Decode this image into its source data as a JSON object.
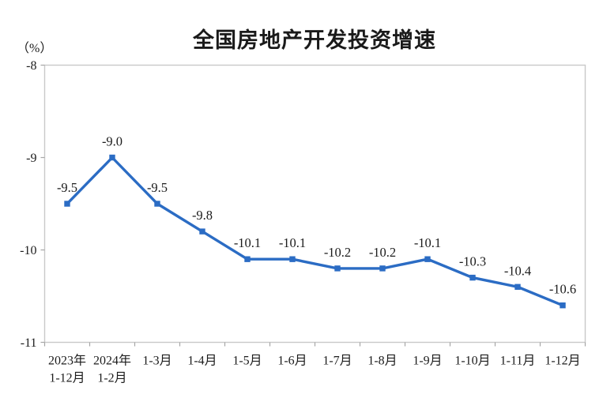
{
  "chart_data": {
    "type": "line",
    "title": "全国房地产开发投资增速",
    "ylabel_unit": "（%）",
    "xlabel": "",
    "ylabel": "",
    "categories": [
      "2023年\n1-12月",
      "2024年\n1-2月",
      "1-3月",
      "1-4月",
      "1-5月",
      "1-6月",
      "1-7月",
      "1-8月",
      "1-9月",
      "1-10月",
      "1-11月",
      "1-12月"
    ],
    "values": [
      -9.5,
      -9.0,
      -9.5,
      -9.8,
      -10.1,
      -10.1,
      -10.2,
      -10.2,
      -10.1,
      -10.3,
      -10.4,
      -10.6
    ],
    "point_labels": [
      "-9.5",
      "-9.0",
      "-9.5",
      "-9.8",
      "-10.1",
      "-10.1",
      "-10.2",
      "-10.2",
      "-10.1",
      "-10.3",
      "-10.4",
      "-10.6"
    ],
    "ylim": [
      -11,
      -8
    ],
    "y_ticks": [
      -8,
      -9,
      -10,
      -11
    ],
    "y_tick_labels": [
      "-8",
      "-9",
      "-10",
      "-11"
    ],
    "grid": false,
    "legend": "none",
    "marker": "square",
    "colors": {
      "line": "#2B6CC4",
      "axis": "#C9C9C9",
      "tick": "#A6A6A6",
      "text": "#1C1C1C",
      "background": "#FFFFFF"
    }
  }
}
